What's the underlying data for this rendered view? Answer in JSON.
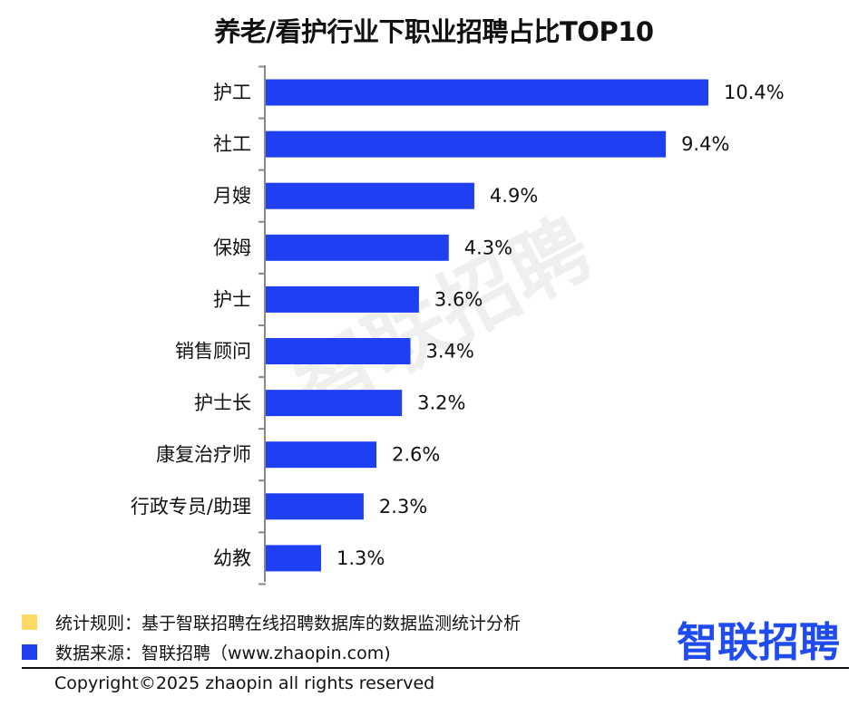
{
  "chart_data": {
    "type": "bar",
    "orientation": "horizontal",
    "title": "养老/看护行业下职业招聘占比TOP10",
    "categories": [
      "护工",
      "社工",
      "月嫂",
      "保姆",
      "护士",
      "销售顾问",
      "护士长",
      "康复治疗师",
      "行政专员/助理",
      "幼教"
    ],
    "values": [
      10.4,
      9.4,
      4.9,
      4.3,
      3.6,
      3.4,
      3.2,
      2.6,
      2.3,
      1.3
    ],
    "value_labels": [
      "10.4%",
      "9.4%",
      "4.9%",
      "4.3%",
      "3.6%",
      "3.4%",
      "3.2%",
      "2.6%",
      "2.3%",
      "1.3%"
    ],
    "unit": "%",
    "xlim": [
      0,
      10.4
    ],
    "bar_color": "#1f3ff2",
    "grid": false
  },
  "watermark": "智联招聘",
  "legend": {
    "rule_text": "统计规则：基于智联招聘在线招聘数据库的数据监测统计分析",
    "rule_color": "#ffd966",
    "source_text": "数据来源：智联招聘（www.zhaopin.com)",
    "source_color": "#1f3ff2"
  },
  "brand": {
    "logo_text": "智联招聘",
    "color": "#1f4cf0"
  },
  "footer": {
    "copyright": "Copyright©2025 zhaopin all rights reserved"
  }
}
